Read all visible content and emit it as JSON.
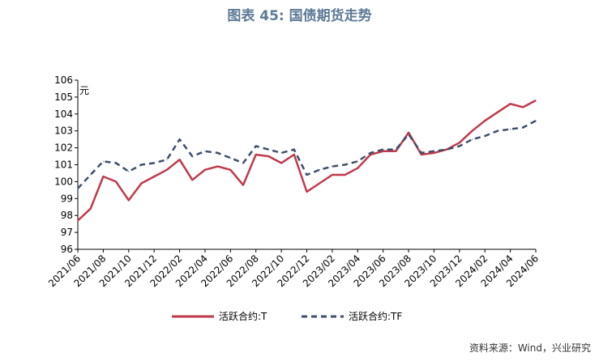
{
  "title": "图表 45: 国债期货走势",
  "source": "资料来源：Wind，兴业研究",
  "chart_data": {
    "type": "line",
    "ylabel": "元",
    "ylim": [
      96,
      106
    ],
    "yticks": [
      96,
      97,
      98,
      99,
      100,
      101,
      102,
      103,
      104,
      105,
      106
    ],
    "x_tick_labels": [
      "2021/06",
      "2021/08",
      "2021/10",
      "2021/12",
      "2022/02",
      "2022/04",
      "2022/06",
      "2022/08",
      "2022/10",
      "2022/12",
      "2023/02",
      "2023/04",
      "2023/06",
      "2023/08",
      "2023/10",
      "2023/12",
      "2024/02",
      "2024/04",
      "2024/06"
    ],
    "x": [
      "2021/06",
      "2021/07",
      "2021/08",
      "2021/09",
      "2021/10",
      "2021/11",
      "2021/12",
      "2022/01",
      "2022/02",
      "2022/03",
      "2022/04",
      "2022/05",
      "2022/06",
      "2022/07",
      "2022/08",
      "2022/09",
      "2022/10",
      "2022/11",
      "2022/12",
      "2023/01",
      "2023/02",
      "2023/03",
      "2023/04",
      "2023/05",
      "2023/06",
      "2023/07",
      "2023/08",
      "2023/09",
      "2023/10",
      "2023/11",
      "2023/12",
      "2024/01",
      "2024/02",
      "2024/03",
      "2024/04",
      "2024/05",
      "2024/06"
    ],
    "series": [
      {
        "name": "活跃合约:T",
        "color": "#c0394b",
        "style": "solid",
        "values": [
          97.7,
          98.4,
          100.3,
          100.0,
          98.9,
          99.9,
          100.3,
          100.7,
          101.3,
          100.1,
          100.7,
          100.9,
          100.7,
          99.8,
          101.6,
          101.5,
          101.1,
          101.6,
          99.4,
          99.9,
          100.4,
          100.4,
          100.8,
          101.6,
          101.8,
          101.8,
          102.9,
          101.6,
          101.7,
          101.9,
          102.3,
          103.0,
          103.6,
          104.1,
          104.6,
          104.4,
          104.8
        ]
      },
      {
        "name": "活跃合约:TF",
        "color": "#3d4f6b",
        "style": "dashed",
        "values": [
          99.6,
          100.4,
          101.2,
          101.1,
          100.6,
          101.0,
          101.1,
          101.3,
          102.5,
          101.5,
          101.8,
          101.7,
          101.4,
          101.1,
          102.1,
          101.9,
          101.7,
          101.9,
          100.4,
          100.7,
          100.9,
          101.0,
          101.2,
          101.7,
          101.9,
          101.9,
          102.8,
          101.7,
          101.8,
          101.9,
          102.1,
          102.5,
          102.7,
          103.0,
          103.1,
          103.2,
          103.6
        ]
      }
    ],
    "legend_position": "bottom-center",
    "grid": false
  }
}
